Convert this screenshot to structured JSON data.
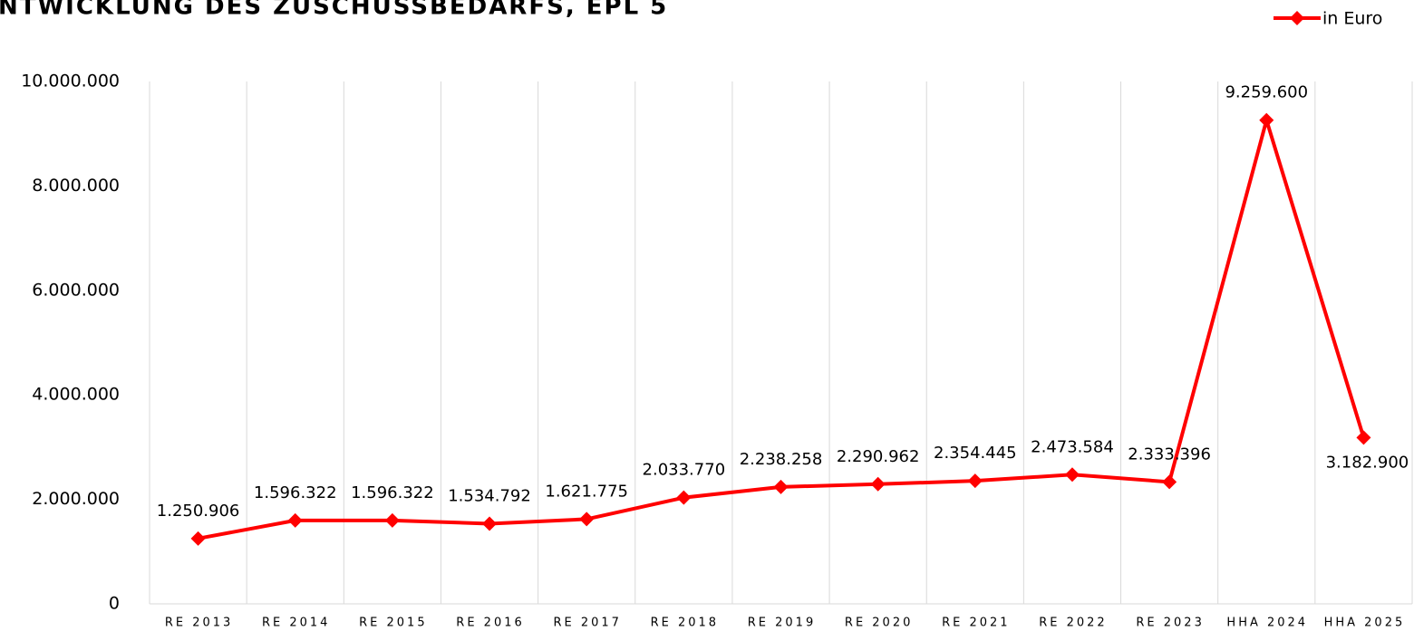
{
  "chart_data": {
    "type": "line",
    "title": "NTWICKLUNG DES ZUSCHUSSBEDARFS, EPL 5",
    "categories": [
      "RE 2013",
      "RE 2014",
      "RE 2015",
      "RE 2016",
      "RE 2017",
      "RE 2018",
      "RE 2019",
      "RE 2020",
      "RE 2021",
      "RE 2022",
      "RE 2023",
      "HHA 2024",
      "HHA 2025"
    ],
    "series": [
      {
        "name": "in Euro",
        "color": "#ff0000",
        "values": [
          1250906,
          1596322,
          1596322,
          1534792,
          1621775,
          2033770,
          2238258,
          2290962,
          2354445,
          2473584,
          2333396,
          9259600,
          3182900
        ],
        "value_labels": [
          "1.250.906",
          "1.596.322",
          "1.596.322",
          "1.534.792",
          "1.621.775",
          "2.033.770",
          "2.238.258",
          "2.290.962",
          "2.354.445",
          "2.473.584",
          "2.333.396",
          "9.259.600",
          "3.182.900"
        ]
      }
    ],
    "ylim": [
      0,
      10000000
    ],
    "yticks": [
      0,
      {
        "value": 2000000,
        "label": "2.000.000"
      },
      {
        "value": 4000000,
        "label": "4.000.000"
      },
      {
        "value": 6000000,
        "label": "6.000.000"
      },
      {
        "value": 8000000,
        "label": "8.000.000"
      },
      {
        "value": 10000000,
        "label": "10.000.000"
      }
    ],
    "legend": "top-right"
  }
}
